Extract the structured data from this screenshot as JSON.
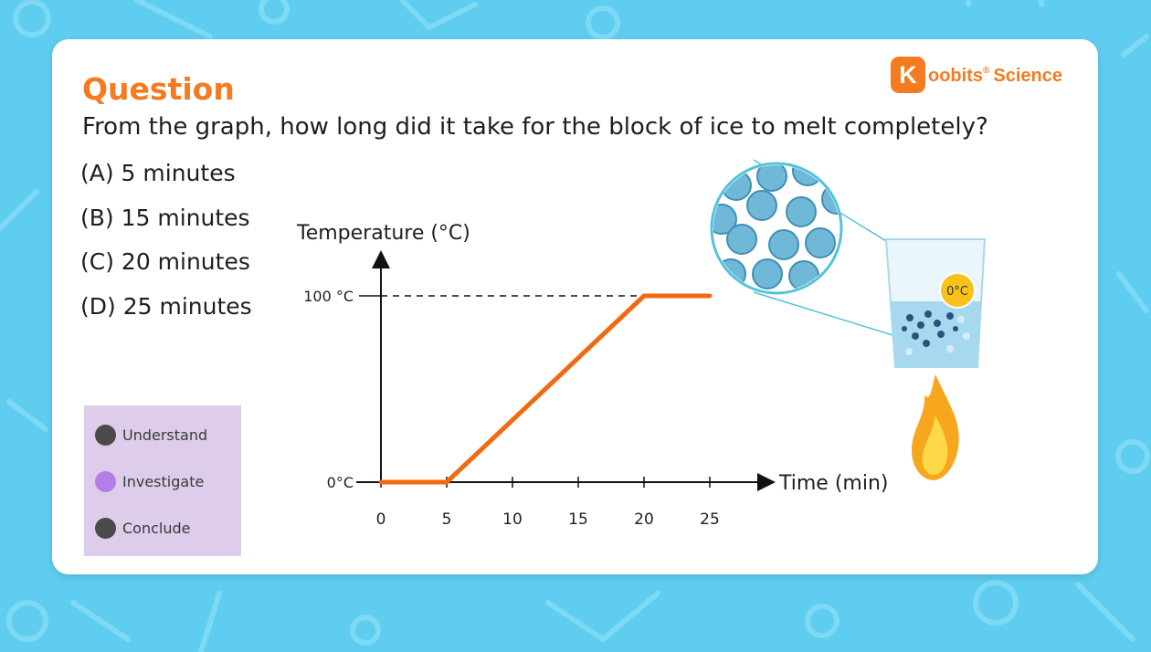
{
  "colors": {
    "background": "#5ecdf0",
    "accent": "#f47b20",
    "line": "#f26a10",
    "legend_bg": "#ddcdea",
    "dot_dark": "#4a4a4a",
    "dot_active": "#b47ee8"
  },
  "logo": {
    "badge": "K",
    "name": "oobits",
    "registered": "®",
    "product": "Science"
  },
  "question": {
    "heading": "Question",
    "text": "From the graph, how long did it take for the block of ice to melt completely?",
    "options": [
      "(A) 5 minutes",
      "(B) 15 minutes",
      "(C) 20 minutes",
      "(D) 25 minutes"
    ]
  },
  "legend": {
    "items": [
      {
        "label": "Understand",
        "state": "inactive"
      },
      {
        "label": "Investigate",
        "state": "active"
      },
      {
        "label": "Conclude",
        "state": "inactive"
      }
    ]
  },
  "illustration": {
    "temperature_badge": "0°C",
    "icons": [
      "beaker-icon",
      "flame-icon",
      "particle-magnifier-icon"
    ]
  },
  "chart_data": {
    "type": "line",
    "ylabel": "Temperature (°C)",
    "xlabel": "Time (min)",
    "x_ticks": [
      "0",
      "5",
      "10",
      "15",
      "20",
      "25"
    ],
    "y_ticks": [
      "0°C",
      "100 °C"
    ],
    "xlim": [
      0,
      25
    ],
    "ylim": [
      0,
      100
    ],
    "grid": false,
    "reference_line": {
      "y": 100,
      "label": "100 °C",
      "style": "dashed"
    },
    "series": [
      {
        "x": [
          0,
          5,
          20,
          25
        ],
        "y": [
          0,
          0,
          100,
          100
        ]
      }
    ]
  }
}
